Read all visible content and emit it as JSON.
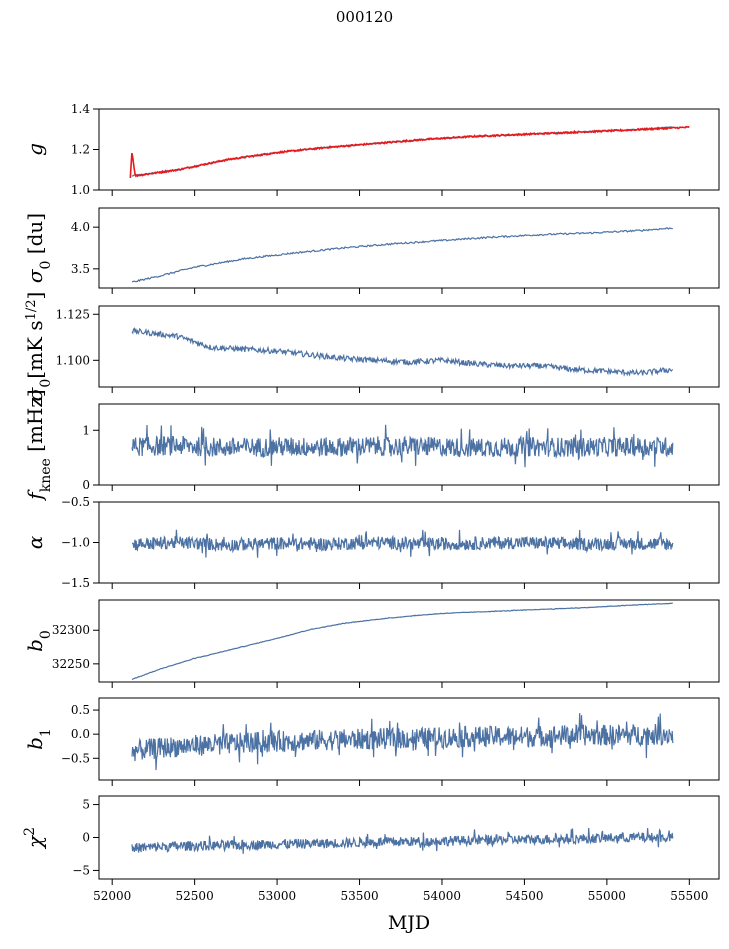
{
  "figure": {
    "title": "000120"
  },
  "chart_data": [
    {
      "type": "line",
      "ylabel": "g",
      "ylim": [
        1.0,
        1.4
      ],
      "yticks": [
        1.0,
        1.2,
        1.4
      ],
      "ytick_labels": [
        "1.0",
        "1.2",
        "1.4"
      ],
      "xlim": [
        51920,
        55680
      ],
      "xticks": [
        52000,
        52500,
        53000,
        53500,
        54000,
        54500,
        55000,
        55500
      ],
      "series": [
        {
          "color": "#4c72a4",
          "x": [
            52120,
            52400,
            52700,
            53000,
            53300,
            53600,
            53900,
            54200,
            54500,
            54800,
            55100,
            55400
          ],
          "y": [
            1.07,
            1.1,
            1.15,
            1.185,
            1.21,
            1.23,
            1.25,
            1.265,
            1.275,
            1.285,
            1.295,
            1.31
          ]
        },
        {
          "color": "#e8191a",
          "x": [
            52110,
            52120,
            52140,
            52400,
            52700,
            53000,
            53300,
            53600,
            53900,
            54200,
            54500,
            54800,
            55100,
            55500
          ],
          "y": [
            1.06,
            1.19,
            1.07,
            1.1,
            1.15,
            1.185,
            1.21,
            1.23,
            1.25,
            1.265,
            1.275,
            1.285,
            1.295,
            1.31
          ]
        }
      ]
    },
    {
      "type": "line",
      "ylabel": "σ0 [du]",
      "ylim": [
        3.27,
        4.23
      ],
      "yticks": [
        3.5,
        4.0
      ],
      "ytick_labels": [
        "3.5",
        "4.0"
      ],
      "xlim": [
        51920,
        55680
      ],
      "xticks": [
        52000,
        52500,
        53000,
        53500,
        54000,
        54500,
        55000,
        55500
      ],
      "series": [
        {
          "color": "#4c72a4",
          "x": [
            52120,
            52300,
            52500,
            52800,
            53100,
            53400,
            53700,
            54000,
            54300,
            54600,
            54900,
            55200,
            55400
          ],
          "y": [
            3.34,
            3.42,
            3.52,
            3.62,
            3.69,
            3.75,
            3.8,
            3.84,
            3.88,
            3.91,
            3.93,
            3.96,
            3.99
          ]
        }
      ]
    },
    {
      "type": "line",
      "ylabel": "σ0[mK s1/2]",
      "ylim": [
        1.0855,
        1.1295
      ],
      "yticks": [
        1.1,
        1.125
      ],
      "ytick_labels": [
        "1.100",
        "1.125"
      ],
      "xlim": [
        51920,
        55680
      ],
      "xticks": [
        52000,
        52500,
        53000,
        53500,
        54000,
        54500,
        55000,
        55500
      ],
      "series": [
        {
          "color": "#4c72a4",
          "x": [
            52120,
            52400,
            52600,
            52800,
            53000,
            53200,
            53400,
            53600,
            53800,
            54000,
            54200,
            54400,
            54600,
            54800,
            55000,
            55200,
            55400
          ],
          "y": [
            1.116,
            1.113,
            1.107,
            1.106,
            1.105,
            1.103,
            1.101,
            1.1,
            1.099,
            1.1,
            1.098,
            1.097,
            1.097,
            1.095,
            1.094,
            1.093,
            1.095
          ]
        }
      ]
    },
    {
      "type": "line",
      "ylabel": "fknee [mHz]",
      "ylim": [
        0,
        1.48
      ],
      "yticks": [
        0,
        1
      ],
      "ytick_labels": [
        "0",
        "1"
      ],
      "xlim": [
        51920,
        55680
      ],
      "xticks": [
        52000,
        52500,
        53000,
        53500,
        54000,
        54500,
        55000,
        55500
      ],
      "series": [
        {
          "color": "#4c72a4",
          "x": [
            52120,
            52400,
            52700,
            53000,
            53300,
            53600,
            53900,
            54200,
            54500,
            54800,
            55100,
            55400
          ],
          "y": [
            0.7,
            0.72,
            0.68,
            0.7,
            0.69,
            0.71,
            0.7,
            0.68,
            0.7,
            0.69,
            0.7,
            0.7
          ]
        }
      ]
    },
    {
      "type": "line",
      "ylabel": "α",
      "ylim": [
        -1.5,
        -0.5
      ],
      "yticks": [
        -1.5,
        -1.0,
        -0.5
      ],
      "ytick_labels": [
        "−1.5",
        "−1.0",
        "−0.5"
      ],
      "xlim": [
        51920,
        55680
      ],
      "xticks": [
        52000,
        52500,
        53000,
        53500,
        54000,
        54500,
        55000,
        55500
      ],
      "series": [
        {
          "color": "#4c72a4",
          "x": [
            52120,
            52400,
            52700,
            53000,
            53300,
            53600,
            53900,
            54200,
            54500,
            54800,
            55100,
            55400
          ],
          "y": [
            -1.02,
            -1.0,
            -1.03,
            -1.01,
            -1.02,
            -1.0,
            -1.02,
            -1.01,
            -1.0,
            -1.02,
            -1.01,
            -1.02
          ]
        }
      ]
    },
    {
      "type": "line",
      "ylabel": "b0",
      "ylim": [
        32223,
        32345
      ],
      "yticks": [
        32250,
        32300
      ],
      "ytick_labels": [
        "32250",
        "32300"
      ],
      "xlim": [
        51920,
        55680
      ],
      "xticks": [
        52000,
        52500,
        53000,
        53500,
        54000,
        54500,
        55000,
        55500
      ],
      "series": [
        {
          "color": "#4c72a4",
          "x": [
            52120,
            52300,
            52500,
            52800,
            53000,
            53200,
            53400,
            53600,
            53800,
            54000,
            54300,
            54600,
            54900,
            55200,
            55400
          ],
          "y": [
            32227,
            32243,
            32258,
            32276,
            32288,
            32301,
            32310,
            32316,
            32321,
            32325,
            32328,
            32331,
            32334,
            32338,
            32340
          ]
        }
      ]
    },
    {
      "type": "line",
      "ylabel": "b1",
      "ylim": [
        -0.95,
        0.75
      ],
      "yticks": [
        -0.5,
        0.0,
        0.5
      ],
      "ytick_labels": [
        "−0.5",
        "0.0",
        "0.5"
      ],
      "xlim": [
        51920,
        55680
      ],
      "xticks": [
        52000,
        52500,
        53000,
        53500,
        54000,
        54500,
        55000,
        55500
      ],
      "series": [
        {
          "color": "#4c72a4",
          "x": [
            52120,
            52400,
            52700,
            53000,
            53300,
            53600,
            53900,
            54200,
            54500,
            54800,
            55100,
            55400
          ],
          "y": [
            -0.35,
            -0.25,
            -0.2,
            -0.15,
            -0.12,
            -0.1,
            -0.08,
            -0.05,
            -0.05,
            -0.02,
            -0.02,
            0.0
          ]
        }
      ]
    },
    {
      "type": "line",
      "ylabel": "χ2",
      "ylim": [
        -6.3,
        6.3
      ],
      "yticks": [
        -5,
        0,
        5
      ],
      "ytick_labels": [
        "−5",
        "0",
        "5"
      ],
      "xlim": [
        51920,
        55680
      ],
      "xticks": [
        52000,
        52500,
        53000,
        53500,
        54000,
        54500,
        55000,
        55500
      ],
      "xtick_labels": [
        "52000",
        "52500",
        "53000",
        "53500",
        "54000",
        "54500",
        "55000",
        "55500"
      ],
      "xlabel": "MJD",
      "series": [
        {
          "color": "#4c72a4",
          "x": [
            52120,
            52400,
            52700,
            53000,
            53300,
            53600,
            53900,
            54200,
            54500,
            54800,
            55100,
            55400
          ],
          "y": [
            -1.6,
            -1.3,
            -1.2,
            -1.0,
            -0.9,
            -0.7,
            -0.6,
            -0.4,
            -0.3,
            -0.2,
            0.0,
            0.0
          ]
        }
      ]
    }
  ]
}
